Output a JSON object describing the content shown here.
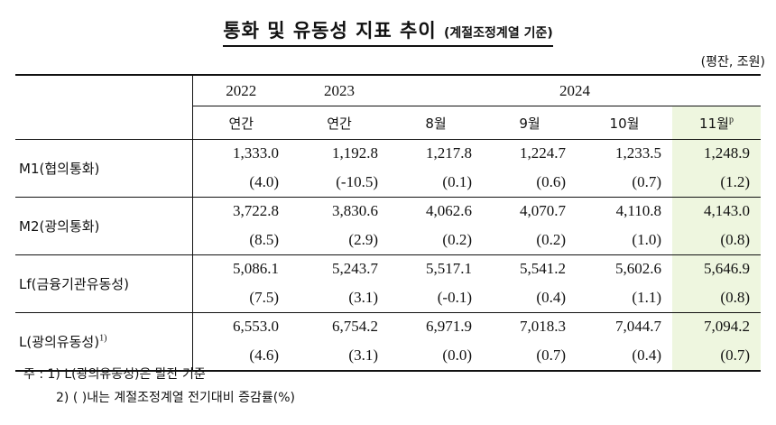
{
  "title": "통화 및 유동성 지표 추이",
  "subtitle": "(계절조정계열 기준)",
  "unit": "(평잔, 조원)",
  "header": {
    "years": [
      "2022",
      "2023",
      "2024"
    ],
    "periods": [
      "연간",
      "연간",
      "8월",
      "9월",
      "10월",
      "11월"
    ],
    "prelim_mark": "p"
  },
  "rows": [
    {
      "label": "M1(협의통화)",
      "values": [
        "1,333.0",
        "1,192.8",
        "1,217.8",
        "1,224.7",
        "1,233.5",
        "1,248.9"
      ],
      "changes": [
        "(4.0)",
        "(-10.5)",
        "(0.1)",
        "(0.6)",
        "(0.7)",
        "(1.2)"
      ]
    },
    {
      "label": "M2(광의통화)",
      "values": [
        "3,722.8",
        "3,830.6",
        "4,062.6",
        "4,070.7",
        "4,110.8",
        "4,143.0"
      ],
      "changes": [
        "(8.5)",
        "(2.9)",
        "(0.2)",
        "(0.2)",
        "(1.0)",
        "(0.8)"
      ]
    },
    {
      "label": "Lf(금융기관유동성)",
      "values": [
        "5,086.1",
        "5,243.7",
        "5,517.1",
        "5,541.2",
        "5,602.6",
        "5,646.9"
      ],
      "changes": [
        "(7.5)",
        "(3.1)",
        "(-0.1)",
        "(0.4)",
        "(1.1)",
        "(0.8)"
      ]
    },
    {
      "label": "L(광의유동성)",
      "label_sup": "1)",
      "values": [
        "6,553.0",
        "6,754.2",
        "6,971.9",
        "7,018.3",
        "7,044.7",
        "7,094.2"
      ],
      "changes": [
        "(4.6)",
        "(3.1)",
        "(0.0)",
        "(0.7)",
        "(0.4)",
        "(0.7)"
      ]
    }
  ],
  "notes": {
    "line1": "주 : 1) L(광의유동성)은 말잔 기준",
    "line2": "2) (   )내는 계절조정계열 전기대비 증감률(%)"
  },
  "colors": {
    "highlight": "#eef6df"
  }
}
